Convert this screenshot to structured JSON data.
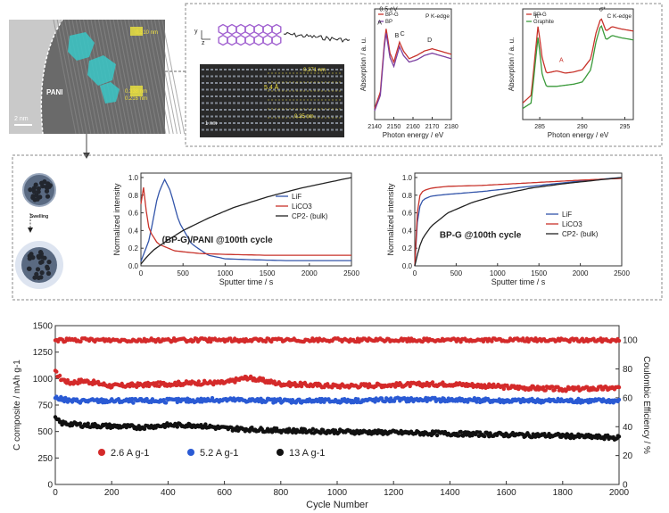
{
  "figure": {
    "tem_scale": "2 nm",
    "tem_label_pani": "PANI",
    "tem_label_a": "0.310 nm",
    "tem_label_b": "0.338 nm",
    "tem_label_c": "0.216 nm",
    "hrtem_labels": [
      "0.271 nm",
      "5.4 Å",
      "0.25 nm"
    ],
    "hrtem_scale": "1 nm",
    "axis_y": "y",
    "axis_z": "z",
    "swelling_label": "Swelling"
  },
  "chart_data": [
    {
      "id": "p_kedge",
      "type": "line",
      "title": "P K-edge",
      "xlabel": "Photon energy / eV",
      "ylabel": "Absorption / a. u.",
      "xlim": [
        2140,
        2180
      ],
      "xticks": [
        2140,
        2150,
        2160,
        2170,
        2180
      ],
      "annotations": [
        "0.5 eV",
        "A",
        "B",
        "C",
        "D"
      ],
      "series": [
        {
          "name": "BP-G",
          "color": "#c8332b",
          "x": [
            2140,
            2143,
            2145,
            2146,
            2148,
            2150,
            2152,
            2153,
            2155,
            2158,
            2162,
            2166,
            2170,
            2174,
            2178,
            2180
          ],
          "y": [
            0.1,
            0.25,
            0.68,
            0.82,
            0.6,
            0.52,
            0.64,
            0.7,
            0.62,
            0.55,
            0.58,
            0.62,
            0.64,
            0.62,
            0.6,
            0.59
          ]
        },
        {
          "name": "BP",
          "color": "#7b3fa0",
          "x": [
            2140,
            2143,
            2145,
            2146,
            2148,
            2150,
            2152,
            2153,
            2155,
            2158,
            2162,
            2166,
            2170,
            2174,
            2178,
            2180
          ],
          "y": [
            0.08,
            0.22,
            0.65,
            0.78,
            0.56,
            0.48,
            0.6,
            0.66,
            0.58,
            0.52,
            0.54,
            0.58,
            0.6,
            0.58,
            0.56,
            0.55
          ]
        }
      ]
    },
    {
      "id": "c_kedge",
      "type": "line",
      "title": "C K-edge",
      "xlabel": "Photon energy / eV",
      "ylabel": "Absorption / a. u.",
      "xlim": [
        283,
        296
      ],
      "xticks": [
        285,
        290,
        295
      ],
      "annotations": [
        "π*",
        "A",
        "σ*"
      ],
      "series": [
        {
          "name": "BP-G",
          "color": "#c8332b",
          "x": [
            283,
            284,
            284.8,
            285.3,
            285.8,
            287,
            288,
            289,
            290,
            291,
            291.6,
            292.2,
            292.8,
            293.5,
            294.5,
            296
          ],
          "y": [
            0.15,
            0.22,
            0.85,
            0.55,
            0.42,
            0.44,
            0.42,
            0.43,
            0.45,
            0.55,
            0.78,
            0.92,
            0.8,
            0.84,
            0.82,
            0.8
          ]
        },
        {
          "name": "Graphite",
          "color": "#3a9a3a",
          "x": [
            283,
            284,
            284.8,
            285.3,
            285.8,
            287,
            288,
            289,
            290,
            291,
            291.6,
            292.2,
            292.8,
            293.5,
            294.5,
            296
          ],
          "y": [
            0.1,
            0.15,
            0.75,
            0.4,
            0.3,
            0.3,
            0.31,
            0.32,
            0.34,
            0.45,
            0.7,
            0.86,
            0.72,
            0.76,
            0.74,
            0.72
          ]
        }
      ]
    },
    {
      "id": "sputter_pani",
      "type": "line",
      "annotation": "(BP-G)/PANI @100th cycle",
      "xlabel": "Sputter time / s",
      "ylabel": "Normalized intensity",
      "xlim": [
        0,
        2500
      ],
      "ylim": [
        0,
        1.05
      ],
      "xticks": [
        0,
        500,
        1000,
        1500,
        2000,
        2500
      ],
      "yticks": [
        0.0,
        0.2,
        0.4,
        0.6,
        0.8,
        1.0
      ],
      "series": [
        {
          "name": "LiF",
          "color": "#3355aa",
          "x": [
            0,
            100,
            200,
            280,
            350,
            450,
            600,
            800,
            1000,
            1300,
            1700,
            2000,
            2500
          ],
          "y": [
            0.05,
            0.3,
            0.8,
            0.98,
            0.85,
            0.5,
            0.25,
            0.12,
            0.08,
            0.07,
            0.06,
            0.06,
            0.06
          ]
        },
        {
          "name": "LiCO3",
          "color": "#c8332b",
          "x": [
            0,
            20,
            50,
            100,
            200,
            400,
            700,
            1000,
            1500,
            2000,
            2500
          ],
          "y": [
            0.7,
            1.0,
            0.7,
            0.4,
            0.25,
            0.17,
            0.14,
            0.13,
            0.12,
            0.12,
            0.12
          ]
        },
        {
          "name": "CP2- (bulk)",
          "color": "#222222",
          "x": [
            0,
            50,
            150,
            300,
            500,
            800,
            1100,
            1500,
            1900,
            2200,
            2500
          ],
          "y": [
            0.02,
            0.08,
            0.18,
            0.28,
            0.4,
            0.54,
            0.66,
            0.78,
            0.88,
            0.94,
            1.0
          ]
        }
      ]
    },
    {
      "id": "sputter_bpg",
      "type": "line",
      "annotation": "BP-G @100th cycle",
      "xlabel": "Sputter time / s",
      "ylabel": "Normalized intensity",
      "xlim": [
        0,
        2500
      ],
      "ylim": [
        0,
        1.05
      ],
      "xticks": [
        0,
        500,
        1000,
        1500,
        2000,
        2500
      ],
      "yticks": [
        0.0,
        0.2,
        0.4,
        0.6,
        0.8,
        1.0
      ],
      "series": [
        {
          "name": "LiF",
          "color": "#3355aa",
          "x": [
            0,
            20,
            50,
            100,
            200,
            400,
            800,
            1200,
            1600,
            2000,
            2500
          ],
          "y": [
            0.0,
            0.4,
            0.65,
            0.75,
            0.79,
            0.81,
            0.84,
            0.88,
            0.92,
            0.96,
            1.0
          ]
        },
        {
          "name": "LiCO3",
          "color": "#c8332b",
          "x": [
            0,
            20,
            50,
            100,
            200,
            400,
            800,
            1200,
            1600,
            2000,
            2500
          ],
          "y": [
            0.0,
            0.5,
            0.78,
            0.85,
            0.88,
            0.9,
            0.91,
            0.93,
            0.95,
            0.97,
            0.99
          ]
        },
        {
          "name": "CP2- (bulk)",
          "color": "#222222",
          "x": [
            0,
            50,
            100,
            200,
            400,
            700,
            1000,
            1400,
            1800,
            2200,
            2500
          ],
          "y": [
            0.0,
            0.2,
            0.32,
            0.45,
            0.6,
            0.72,
            0.8,
            0.88,
            0.93,
            0.97,
            1.0
          ]
        }
      ]
    },
    {
      "id": "cycling",
      "type": "scatter",
      "xlabel": "Cycle Number",
      "ylabel": "C composite / mAh g-1",
      "y2label": "Coulombic Efficiency / %",
      "xlim": [
        0,
        2000
      ],
      "ylim": [
        0,
        1500
      ],
      "y2lim": [
        0,
        110
      ],
      "xticks": [
        0,
        200,
        400,
        600,
        800,
        1000,
        1200,
        1400,
        1600,
        1800,
        2000
      ],
      "yticks": [
        0,
        250,
        500,
        750,
        1000,
        1250,
        1500
      ],
      "y2ticks": [
        0,
        20,
        40,
        60,
        80,
        100
      ],
      "series": [
        {
          "name": "2.6 A g-1",
          "color": "#d42a2a",
          "x": [
            0,
            20,
            50,
            100,
            200,
            300,
            400,
            500,
            600,
            680,
            800,
            1000,
            1200,
            1400,
            1600,
            1800,
            2000
          ],
          "y": [
            1060,
            1000,
            960,
            980,
            930,
            940,
            950,
            960,
            960,
            1010,
            950,
            930,
            940,
            950,
            920,
            900,
            910
          ]
        },
        {
          "name": "5.2 A g-1",
          "color": "#2a5ad4",
          "x": [
            0,
            50,
            200,
            400,
            600,
            800,
            1000,
            1200,
            1400,
            1600,
            1800,
            2000
          ],
          "y": [
            820,
            790,
            790,
            790,
            800,
            790,
            790,
            800,
            800,
            790,
            790,
            790
          ]
        },
        {
          "name": "13 A g-1",
          "color": "#111111",
          "x": [
            0,
            20,
            100,
            200,
            300,
            400,
            500,
            600,
            800,
            1000,
            1200,
            1400,
            1600,
            1800,
            2000
          ],
          "y": [
            620,
            580,
            560,
            550,
            540,
            560,
            560,
            530,
            510,
            500,
            490,
            480,
            470,
            460,
            440
          ]
        },
        {
          "name": "Coulombic Efficiency",
          "axis": "y2",
          "color": "#d42a2a",
          "x": [
            0,
            500,
            1000,
            1500,
            2000
          ],
          "y": [
            100,
            100,
            100,
            100,
            100
          ]
        }
      ]
    }
  ]
}
